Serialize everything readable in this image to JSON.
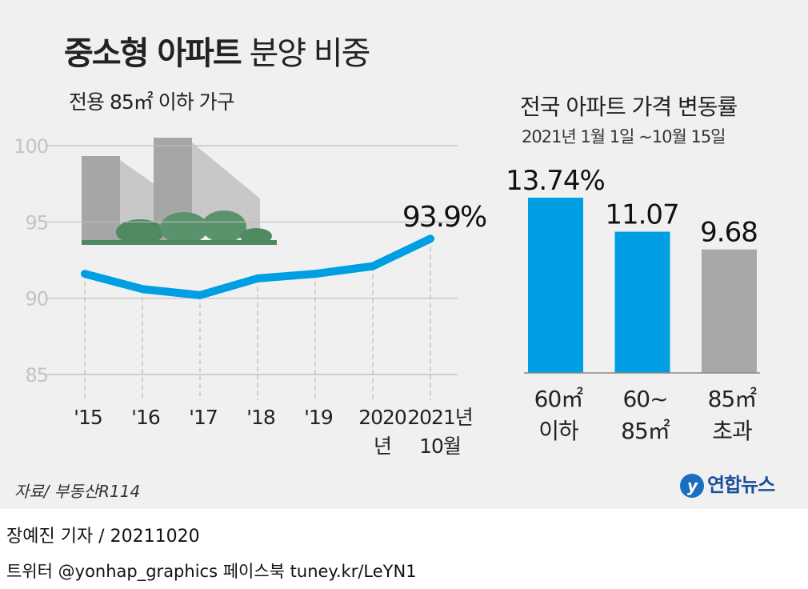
{
  "title": {
    "bold": "중소형 아파트",
    "rest": "분양 비중"
  },
  "subtitle": "전용 85㎡ 이하 가구",
  "chart_data": [
    {
      "type": "line",
      "title": "중소형 아파트 분양 비중",
      "subtitle": "전용 85㎡ 이하 가구",
      "categories": [
        "'15",
        "'16",
        "'17",
        "'18",
        "'19",
        "2020년",
        "2021년 10월"
      ],
      "category_labels": [
        [
          "'15"
        ],
        [
          "'16"
        ],
        [
          "'17"
        ],
        [
          "'18"
        ],
        [
          "'19"
        ],
        [
          "2020",
          "년"
        ],
        [
          "2021년",
          "10월"
        ]
      ],
      "values": [
        91.6,
        90.6,
        90.2,
        91.3,
        91.6,
        92.1,
        93.9
      ],
      "yticks": [
        85,
        90,
        95,
        100
      ],
      "ylim": [
        85,
        100
      ],
      "grid": true,
      "annotation": "93.9%",
      "line_color": "#009fe3"
    },
    {
      "type": "bar",
      "title": "전국 아파트 가격 변동률",
      "subtitle": "2021년 1월 1일 ~10월 15일",
      "categories": [
        "60㎡ 이하",
        "60~85㎡",
        "85㎡ 초과"
      ],
      "category_labels": [
        [
          "60㎡",
          "이하"
        ],
        [
          "60~",
          "85㎡"
        ],
        [
          "85㎡",
          "초과"
        ]
      ],
      "values": [
        13.74,
        11.07,
        9.68
      ],
      "data_labels": [
        "13.74%",
        "11.07",
        "9.68"
      ],
      "colors": [
        "#009fe3",
        "#009fe3",
        "#a8a8a8"
      ]
    }
  ],
  "source": "자료/ 부동산R114",
  "logo": {
    "mark": "y",
    "text": "연합뉴스"
  },
  "byline": "장예진 기자 / 20211020",
  "social": "트위터 @yonhap_graphics  페이스북 tuney.kr/LeYN1"
}
